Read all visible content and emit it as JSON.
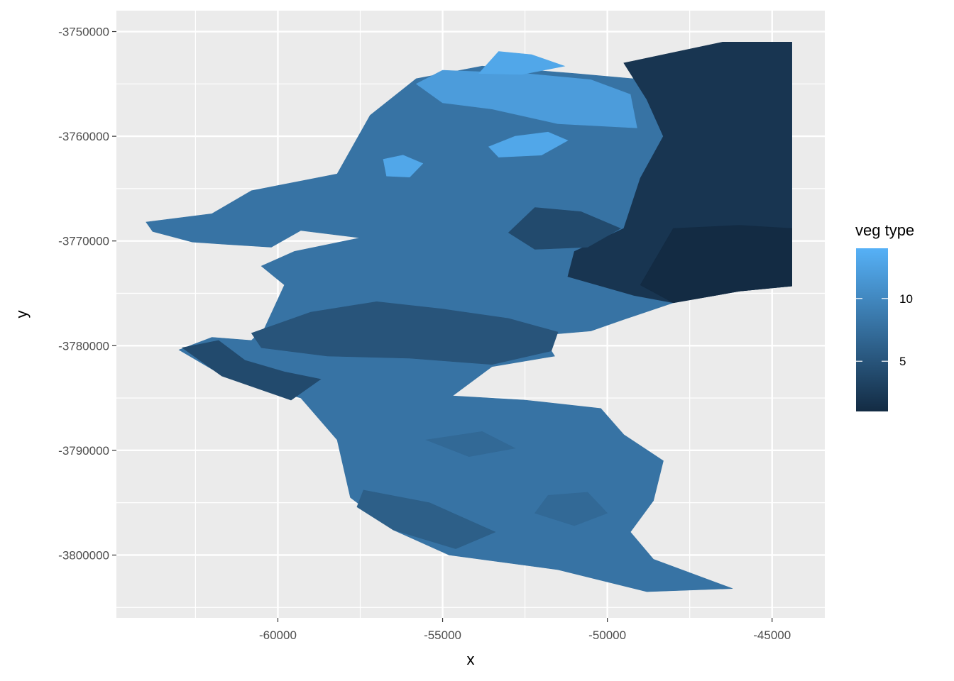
{
  "chart_data": {
    "type": "heatmap",
    "title": "",
    "xlabel": "x",
    "ylabel": "y",
    "xlim": [
      -64900,
      -43400
    ],
    "ylim": [
      -3806000,
      -3748000
    ],
    "x_ticks": [
      -60000,
      -55000,
      -50000,
      -45000
    ],
    "x_tick_labels": [
      "-60000",
      "-55000",
      "-50000",
      "-45000"
    ],
    "y_ticks": [
      -3750000,
      -3760000,
      -3770000,
      -3780000,
      -3790000,
      -3800000
    ],
    "y_tick_labels": [
      "-3750000",
      "-3760000",
      "-3770000",
      "-3780000",
      "-3790000",
      "-3800000"
    ],
    "grid": true,
    "background": "#ebebeb",
    "legend": {
      "title": "veg type",
      "placement": "right",
      "min": 1,
      "max": 14,
      "ticks": [
        5,
        10
      ],
      "tick_labels": [
        "5",
        "10"
      ],
      "color_low": "#132b43",
      "color_high": "#56b1f7"
    },
    "regions": [
      {
        "value": 8,
        "polygon": [
          [
            -64000,
            -3768200
          ],
          [
            -62000,
            -3767400
          ],
          [
            -60800,
            -3765200
          ],
          [
            -58200,
            -3763600
          ],
          [
            -57200,
            -3758000
          ],
          [
            -55800,
            -3754500
          ],
          [
            -53800,
            -3753300
          ],
          [
            -51000,
            -3754000
          ],
          [
            -48500,
            -3754700
          ],
          [
            -47000,
            -3752200
          ],
          [
            -46000,
            -3751000
          ],
          [
            -44400,
            -3751000
          ],
          [
            -44400,
            -3774300
          ],
          [
            -46000,
            -3774800
          ],
          [
            -48000,
            -3775900
          ],
          [
            -49500,
            -3777500
          ],
          [
            -50500,
            -3778600
          ],
          [
            -52000,
            -3779000
          ],
          [
            -51600,
            -3781000
          ],
          [
            -53500,
            -3782000
          ],
          [
            -54700,
            -3784800
          ],
          [
            -52500,
            -3785200
          ],
          [
            -50200,
            -3786000
          ],
          [
            -49500,
            -3788500
          ],
          [
            -48300,
            -3791000
          ],
          [
            -48600,
            -3794800
          ],
          [
            -49300,
            -3797800
          ],
          [
            -48600,
            -3800400
          ],
          [
            -46200,
            -3803200
          ],
          [
            -48800,
            -3803500
          ],
          [
            -51500,
            -3801400
          ],
          [
            -54800,
            -3800000
          ],
          [
            -56500,
            -3797600
          ],
          [
            -57800,
            -3794500
          ],
          [
            -58200,
            -3789000
          ],
          [
            -59300,
            -3785000
          ],
          [
            -61700,
            -3782800
          ],
          [
            -63000,
            -3780400
          ],
          [
            -62000,
            -3779200
          ],
          [
            -60800,
            -3779500
          ],
          [
            -60400,
            -3778300
          ],
          [
            -59800,
            -3774200
          ],
          [
            -60500,
            -3772400
          ],
          [
            -59500,
            -3771000
          ],
          [
            -57500,
            -3769700
          ],
          [
            -59300,
            -3769000
          ],
          [
            -60200,
            -3770600
          ],
          [
            -61700,
            -3770300
          ],
          [
            -62600,
            -3770100
          ],
          [
            -63800,
            -3769100
          ]
        ]
      },
      {
        "value": 2,
        "polygon": [
          [
            -49500,
            -3753000
          ],
          [
            -48000,
            -3752000
          ],
          [
            -46500,
            -3751000
          ],
          [
            -44400,
            -3751000
          ],
          [
            -44400,
            -3774300
          ],
          [
            -46000,
            -3774800
          ],
          [
            -48000,
            -3775900
          ],
          [
            -49200,
            -3775200
          ],
          [
            -51200,
            -3773400
          ],
          [
            -51000,
            -3771000
          ],
          [
            -49500,
            -3768800
          ],
          [
            -49000,
            -3764000
          ],
          [
            -48300,
            -3760000
          ],
          [
            -48800,
            -3756500
          ]
        ]
      },
      {
        "value": 1,
        "polygon": [
          [
            -48000,
            -3768800
          ],
          [
            -46000,
            -3768500
          ],
          [
            -44400,
            -3768800
          ],
          [
            -44400,
            -3774300
          ],
          [
            -46000,
            -3774800
          ],
          [
            -48000,
            -3775900
          ],
          [
            -49000,
            -3774200
          ]
        ]
      },
      {
        "value": 12,
        "polygon": [
          [
            -55000,
            -3753700
          ],
          [
            -52500,
            -3754000
          ],
          [
            -50500,
            -3754600
          ],
          [
            -49300,
            -3756000
          ],
          [
            -49100,
            -3759200
          ],
          [
            -51500,
            -3758800
          ],
          [
            -53500,
            -3757400
          ],
          [
            -55000,
            -3756800
          ],
          [
            -55800,
            -3755000
          ]
        ]
      },
      {
        "value": 5,
        "polygon": [
          [
            -60800,
            -3778800
          ],
          [
            -59000,
            -3776800
          ],
          [
            -57000,
            -3775800
          ],
          [
            -55000,
            -3776500
          ],
          [
            -53000,
            -3777400
          ],
          [
            -51500,
            -3778700
          ],
          [
            -51700,
            -3780500
          ],
          [
            -53500,
            -3781800
          ],
          [
            -56000,
            -3781200
          ],
          [
            -58500,
            -3781000
          ],
          [
            -60500,
            -3780200
          ]
        ]
      },
      {
        "value": 4,
        "polygon": [
          [
            -62900,
            -3780200
          ],
          [
            -61800,
            -3779500
          ],
          [
            -61000,
            -3781400
          ],
          [
            -59800,
            -3782500
          ],
          [
            -58700,
            -3783200
          ],
          [
            -59600,
            -3785200
          ],
          [
            -61700,
            -3782900
          ]
        ]
      },
      {
        "value": 4,
        "polygon": [
          [
            -52200,
            -3766800
          ],
          [
            -50800,
            -3767200
          ],
          [
            -49600,
            -3768800
          ],
          [
            -50600,
            -3770600
          ],
          [
            -52200,
            -3770800
          ],
          [
            -53000,
            -3769200
          ]
        ]
      },
      {
        "value": 13,
        "polygon": [
          [
            -52800,
            -3760000
          ],
          [
            -51800,
            -3759600
          ],
          [
            -51200,
            -3760400
          ],
          [
            -52000,
            -3761800
          ],
          [
            -53300,
            -3762000
          ],
          [
            -53600,
            -3761000
          ]
        ]
      },
      {
        "value": 13,
        "polygon": [
          [
            -56800,
            -3762200
          ],
          [
            -56200,
            -3761800
          ],
          [
            -55600,
            -3762600
          ],
          [
            -56000,
            -3763900
          ],
          [
            -56700,
            -3763800
          ]
        ]
      },
      {
        "value": 13,
        "polygon": [
          [
            -53300,
            -3751900
          ],
          [
            -52300,
            -3752200
          ],
          [
            -51300,
            -3753300
          ],
          [
            -52600,
            -3754100
          ],
          [
            -53900,
            -3754000
          ]
        ]
      },
      {
        "value": 7,
        "polygon": [
          [
            -55500,
            -3789000
          ],
          [
            -53800,
            -3788200
          ],
          [
            -52800,
            -3789800
          ],
          [
            -54200,
            -3790600
          ]
        ]
      },
      {
        "value": 7,
        "polygon": [
          [
            -51800,
            -3794300
          ],
          [
            -50600,
            -3794000
          ],
          [
            -50000,
            -3796000
          ],
          [
            -51000,
            -3797200
          ],
          [
            -52200,
            -3796000
          ]
        ]
      },
      {
        "value": 6,
        "polygon": [
          [
            -57400,
            -3793800
          ],
          [
            -55400,
            -3795000
          ],
          [
            -53400,
            -3797800
          ],
          [
            -54600,
            -3799400
          ],
          [
            -56500,
            -3797600
          ],
          [
            -57600,
            -3795400
          ]
        ]
      }
    ]
  }
}
